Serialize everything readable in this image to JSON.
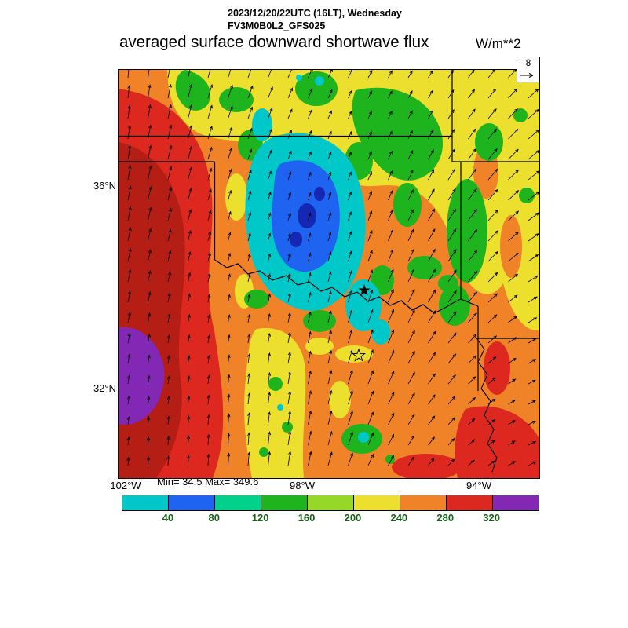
{
  "header": {
    "datetime": "2023/12/20/22UTC (16LT), Wednesday",
    "model": "FV3M0B0L2_GFS025",
    "title": "averaged surface downward shortwave flux",
    "units": "W/m**2"
  },
  "reference_vector": {
    "label": "8"
  },
  "axes": {
    "lat": [
      "36°N",
      "32°N"
    ],
    "lon": [
      "102°W",
      "98°W",
      "94°W"
    ]
  },
  "stats_text": "Min= 34.5 Max= 349.6",
  "chart_data": {
    "type": "heatmap",
    "title": "averaged surface downward shortwave flux",
    "units": "W/m**2",
    "valid_time": "2023/12/20/22UTC (16LT), Wednesday",
    "model_run": "FV3M0B0L2_GFS025",
    "stats": {
      "min": 34.5,
      "max": 349.6
    },
    "reference_vector_value": 8,
    "overlay": "wind vector arrows",
    "axis_ticks": {
      "lat": [
        "36°N",
        "32°N"
      ],
      "lon": [
        "102°W",
        "98°W",
        "94°W"
      ]
    },
    "colorbar": {
      "tick_labels": [
        40,
        80,
        120,
        160,
        200,
        240,
        280,
        320
      ],
      "segment_colors": [
        "#00c8c8",
        "#1e64f0",
        "#00d28c",
        "#1eb41e",
        "#96d728",
        "#ecdf2e",
        "#f08228",
        "#dc281e",
        "#8228b4"
      ],
      "tick_color": "#176117"
    }
  }
}
